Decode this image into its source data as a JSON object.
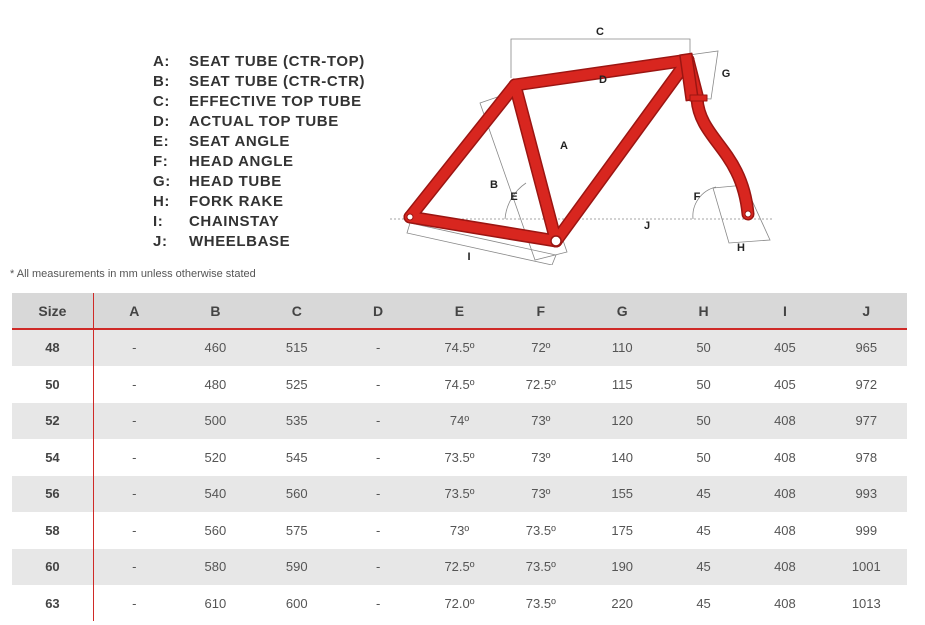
{
  "legend": [
    {
      "key": "A:",
      "label": "SEAT TUBE (CTR-TOP)"
    },
    {
      "key": "B:",
      "label": "SEAT TUBE (CTR-CTR)"
    },
    {
      "key": "C:",
      "label": "EFFECTIVE TOP TUBE"
    },
    {
      "key": "D:",
      "label": "ACTUAL TOP TUBE"
    },
    {
      "key": "E:",
      "label": "SEAT ANGLE"
    },
    {
      "key": "F:",
      "label": "HEAD ANGLE"
    },
    {
      "key": "G:",
      "label": "HEAD TUBE"
    },
    {
      "key": "H:",
      "label": "FORK RAKE"
    },
    {
      "key": "I:",
      "label": "CHAINSTAY"
    },
    {
      "key": "J:",
      "label": "WHEELBASE"
    }
  ],
  "note": "* All measurements in mm unless otherwise stated",
  "diagram": {
    "labels": {
      "A": "A",
      "B": "B",
      "C": "C",
      "D": "D",
      "E": "E",
      "F": "F",
      "G": "G",
      "H": "H",
      "I": "I",
      "J": "J"
    },
    "colors": {
      "frame": "#d8261f",
      "frame_edge": "#9b1512",
      "guide": "#888888"
    }
  },
  "table": {
    "headers": [
      "Size",
      "A",
      "B",
      "C",
      "D",
      "E",
      "F",
      "G",
      "H",
      "I",
      "J"
    ],
    "rows": [
      [
        "48",
        "-",
        "460",
        "515",
        "-",
        "74.5º",
        "72º",
        "110",
        "50",
        "405",
        "965"
      ],
      [
        "50",
        "-",
        "480",
        "525",
        "-",
        "74.5º",
        "72.5º",
        "115",
        "50",
        "405",
        "972"
      ],
      [
        "52",
        "-",
        "500",
        "535",
        "-",
        "74º",
        "73º",
        "120",
        "50",
        "408",
        "977"
      ],
      [
        "54",
        "-",
        "520",
        "545",
        "-",
        "73.5º",
        "73º",
        "140",
        "50",
        "408",
        "978"
      ],
      [
        "56",
        "-",
        "540",
        "560",
        "-",
        "73.5º",
        "73º",
        "155",
        "45",
        "408",
        "993"
      ],
      [
        "58",
        "-",
        "560",
        "575",
        "-",
        "73º",
        "73.5º",
        "175",
        "45",
        "408",
        "999"
      ],
      [
        "60",
        "-",
        "580",
        "590",
        "-",
        "72.5º",
        "73.5º",
        "190",
        "45",
        "408",
        "1001"
      ],
      [
        "63",
        "-",
        "610",
        "600",
        "-",
        "72.0º",
        "73.5º",
        "220",
        "45",
        "408",
        "1013"
      ]
    ],
    "colors": {
      "header_bg": "#d8d8d8",
      "row_alt": "#e7e7e7",
      "accent": "#cf2a27"
    }
  }
}
